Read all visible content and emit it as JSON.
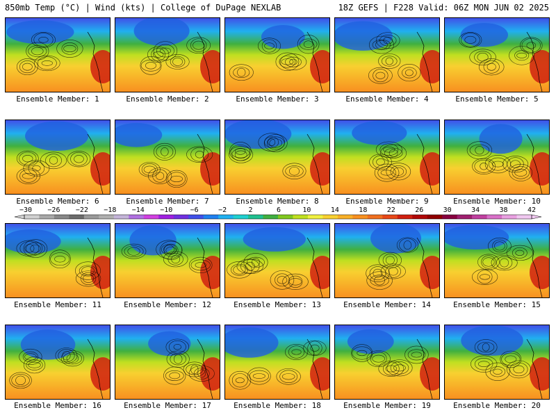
{
  "header": {
    "left": "850mb Temp (°C) | Wind (kts) | College of DuPage NEXLAB",
    "right": "18Z GEFS | F228 Valid: 06Z MON JUN 02 2025"
  },
  "members": [
    "Ensemble Member: 1",
    "Ensemble Member: 2",
    "Ensemble Member: 3",
    "Ensemble Member: 4",
    "Ensemble Member: 5",
    "Ensemble Member: 6",
    "Ensemble Member: 7",
    "Ensemble Member: 8",
    "Ensemble Member: 9",
    "Ensemble Member: 10",
    "Ensemble Member: 11",
    "Ensemble Member: 12",
    "Ensemble Member: 13",
    "Ensemble Member: 14",
    "Ensemble Member: 15",
    "Ensemble Member: 16",
    "Ensemble Member: 17",
    "Ensemble Member: 18",
    "Ensemble Member: 19",
    "Ensemble Member: 20"
  ],
  "color_scale": {
    "labels": [
      "−30",
      "−26",
      "−22",
      "−18",
      "−14",
      "−10",
      "−6",
      "−2",
      "2",
      "6",
      "10",
      "14",
      "18",
      "22",
      "26",
      "30",
      "34",
      "38",
      "42"
    ],
    "colors": [
      "#d0d0d0",
      "#a8a8a8",
      "#888888",
      "#6c6c6c",
      "#9a9a9a",
      "#b0b0b0",
      "#c4b4d8",
      "#b070e0",
      "#d040e0",
      "#a020e0",
      "#7030e0",
      "#4050e8",
      "#2080f0",
      "#20b0f0",
      "#20d0d0",
      "#20c090",
      "#40b040",
      "#80c820",
      "#c0e020",
      "#f0f040",
      "#f8d030",
      "#f8b028",
      "#f89020",
      "#f07020",
      "#e84818",
      "#d02010",
      "#b00808",
      "#900000",
      "#880040",
      "#a02070",
      "#c040a0",
      "#d870c8",
      "#e8a0e0",
      "#f0c8f0"
    ]
  }
}
